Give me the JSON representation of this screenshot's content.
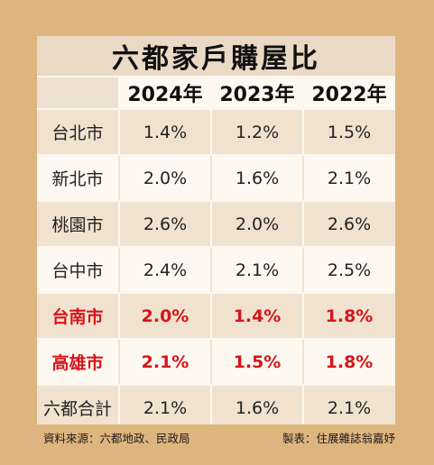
{
  "title": "六都家戶購屋比",
  "years": [
    "2024年",
    "2023年",
    "2022年"
  ],
  "rows": [
    {
      "city": "台北市",
      "values": [
        "1.4%",
        "1.2%",
        "1.5%"
      ]
    },
    {
      "city": "新北市",
      "values": [
        "2.0%",
        "1.6%",
        "2.1%"
      ]
    },
    {
      "city": "桃園市",
      "values": [
        "2.6%",
        "2.0%",
        "2.6%"
      ]
    },
    {
      "city": "台中市",
      "values": [
        "2.4%",
        "2.1%",
        "2.5%"
      ]
    },
    {
      "city": "台南市",
      "values": [
        "2.0%",
        "1.4%",
        "1.8%"
      ]
    },
    {
      "city": "高雄市",
      "values": [
        "2.1%",
        "1.5%",
        "1.8%"
      ]
    },
    {
      "city": "六都合計",
      "values": [
        "2.1%",
        "1.6%",
        "2.1%"
      ]
    }
  ],
  "source": "資料來源：六都地政、民政局",
  "credit": "製表：住展雜誌翁嘉妤",
  "colors": {
    "background": "#dfb57f",
    "highlight_text": "#d4161b",
    "shaded_row": "#f1e2cf"
  }
}
